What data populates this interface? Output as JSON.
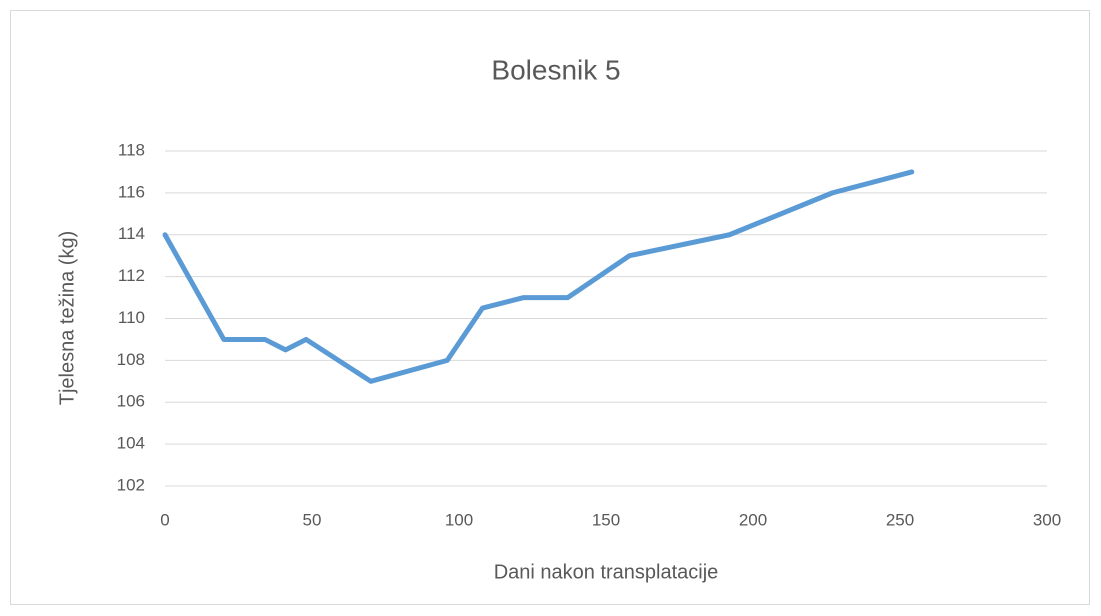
{
  "chart_data": {
    "type": "line",
    "title": "Bolesnik 5",
    "x_label": "Dani nakon transplatacije",
    "y_label": "Tjelesna težina (kg)",
    "x": [
      0,
      20,
      34,
      41,
      48,
      70,
      96,
      108,
      122,
      137,
      158,
      192,
      227,
      254
    ],
    "series": [
      {
        "name": "Bolesnik 5",
        "color": "#5b9bd5",
        "values": [
          114,
          109,
          109,
          108.5,
          109,
          107,
          108,
          110.5,
          111,
          111,
          113,
          114,
          116,
          117
        ]
      }
    ],
    "xlim": [
      0,
      300
    ],
    "xticks": [
      0,
      50,
      100,
      150,
      200,
      250,
      300
    ],
    "ylim": [
      102,
      118
    ],
    "yticks": [
      102,
      104,
      106,
      108,
      110,
      112,
      114,
      116,
      118
    ],
    "grid": true
  }
}
